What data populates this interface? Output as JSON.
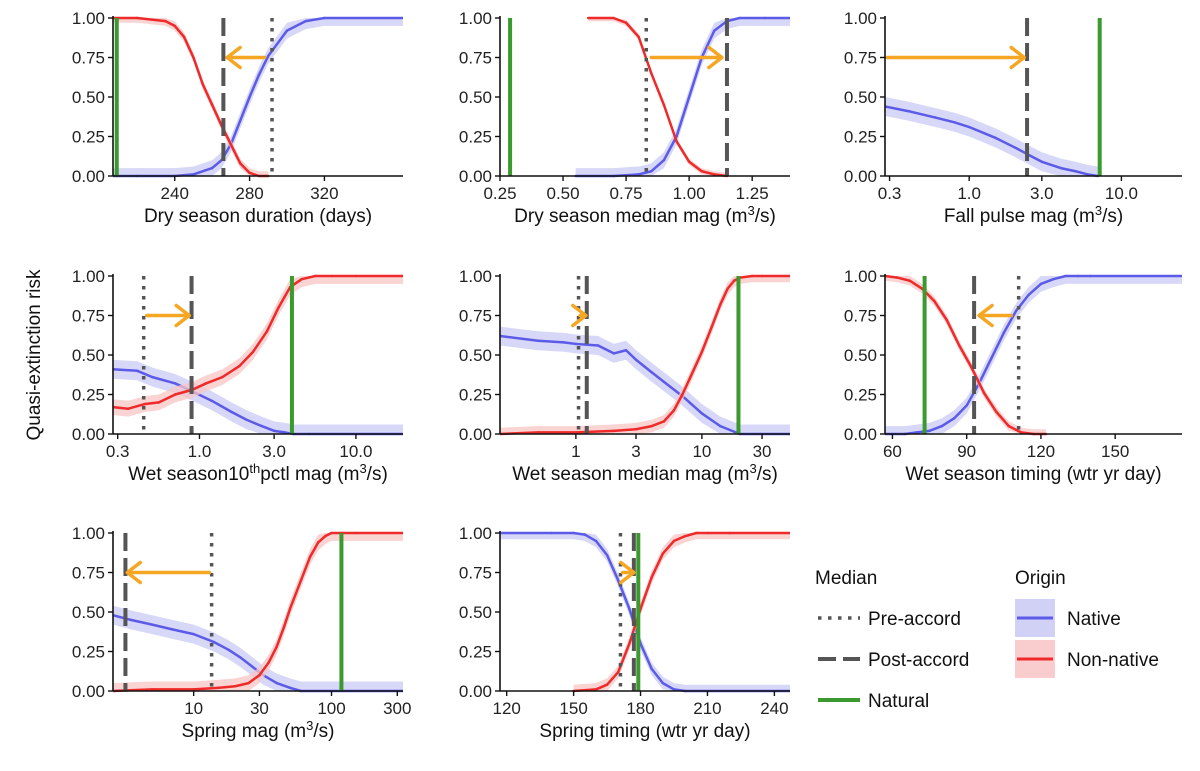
{
  "y_axis_label": "Quasi-extinction risk",
  "colors": {
    "native": "#5b5be8",
    "non_native": "#ee2a2a",
    "natural": "#3a9a2e",
    "accord": "#555555",
    "arrow": "#f5a623",
    "native_band": "#c9c9f5",
    "non_native_band": "#f8c4c4"
  },
  "legend": {
    "median_title": "Median",
    "median_items": [
      "Pre-accord",
      "Post-accord",
      "Natural"
    ],
    "origin_title": "Origin",
    "origin_items": [
      "Native",
      "Non-native"
    ]
  },
  "chart_data": [
    {
      "type": "line",
      "title": "",
      "xlabel": "Dry season duration (days)",
      "xlabel_parts": null,
      "x_scale": "linear",
      "xlim": [
        207,
        362
      ],
      "ylim": [
        0,
        1
      ],
      "xticks": [
        240,
        280,
        320
      ],
      "xtick_labels": [
        "240",
        "280",
        "320"
      ],
      "yticks": [
        0,
        0.25,
        0.5,
        0.75,
        1.0
      ],
      "ytick_labels": [
        "0.00",
        "0.25",
        "0.50",
        "0.75",
        "1.00"
      ],
      "series": [
        {
          "name": "Native",
          "x": [
            207,
            220,
            240,
            250,
            260,
            265,
            270,
            275,
            280,
            285,
            290,
            300,
            310,
            320,
            362
          ],
          "y": [
            0,
            0,
            0.0,
            0.01,
            0.05,
            0.1,
            0.2,
            0.35,
            0.5,
            0.64,
            0.76,
            0.92,
            0.98,
            1,
            1
          ],
          "band": 0.05
        },
        {
          "name": "Non-native",
          "x": [
            207,
            220,
            235,
            240,
            245,
            250,
            255,
            260,
            265,
            270,
            275,
            280,
            285,
            290
          ],
          "y": [
            1,
            1,
            0.98,
            0.95,
            0.88,
            0.75,
            0.58,
            0.45,
            0.32,
            0.2,
            0.08,
            0.02,
            0.0,
            0
          ],
          "band": 0.03
        }
      ],
      "medians": {
        "pre_accord": 292,
        "post_accord": 266,
        "natural": 209
      },
      "arrow": {
        "from": 288,
        "to": 268,
        "y": 0.75
      }
    },
    {
      "type": "line",
      "title": "",
      "xlabel": "Dry season median mag (m³/s)",
      "xlabel_parts": [
        "Dry season median mag (m",
        "3",
        "/s)"
      ],
      "x_scale": "linear",
      "xlim": [
        0.25,
        1.4
      ],
      "ylim": [
        0,
        1
      ],
      "xticks": [
        0.25,
        0.5,
        0.75,
        1.0,
        1.25
      ],
      "xtick_labels": [
        "0.25",
        "0.50",
        "0.75",
        "1.00",
        "1.25"
      ],
      "yticks": [
        0,
        0.25,
        0.5,
        0.75,
        1.0
      ],
      "ytick_labels": [
        "0.00",
        "0.25",
        "0.50",
        "0.75",
        "1.00"
      ],
      "series": [
        {
          "name": "Native",
          "x": [
            0.55,
            0.7,
            0.8,
            0.85,
            0.9,
            0.95,
            1.0,
            1.05,
            1.1,
            1.15,
            1.2,
            1.3,
            1.4
          ],
          "y": [
            0,
            0,
            0.01,
            0.03,
            0.1,
            0.25,
            0.5,
            0.75,
            0.92,
            0.98,
            1,
            1,
            1
          ],
          "band": 0.05
        },
        {
          "name": "Non-native",
          "x": [
            0.6,
            0.7,
            0.75,
            0.8,
            0.85,
            0.9,
            0.95,
            1.0,
            1.05,
            1.1,
            1.15
          ],
          "y": [
            1,
            1,
            0.97,
            0.88,
            0.65,
            0.45,
            0.22,
            0.09,
            0.03,
            0.01,
            0
          ],
          "band": 0.02
        }
      ],
      "medians": {
        "pre_accord": 0.83,
        "post_accord": 1.15,
        "natural": 0.29
      },
      "arrow": {
        "from": 0.85,
        "to": 1.13,
        "y": 0.75
      }
    },
    {
      "type": "line",
      "title": "",
      "xlabel": "Fall pulse mag (m³/s)",
      "xlabel_parts": [
        "Fall pulse mag (m",
        "3",
        "/s)"
      ],
      "x_scale": "log",
      "xlim": [
        0.28,
        25
      ],
      "ylim": [
        0,
        1
      ],
      "xticks": [
        0.3,
        1.0,
        3.0,
        10.0
      ],
      "xtick_labels": [
        "0.3",
        "1.0",
        "3.0",
        "10.0"
      ],
      "yticks": [
        0,
        0.25,
        0.5,
        0.75,
        1.0
      ],
      "ytick_labels": [
        "0.00",
        "0.25",
        "0.50",
        "0.75",
        "1.00"
      ],
      "series": [
        {
          "name": "Native",
          "x": [
            0.28,
            0.4,
            0.6,
            0.8,
            1.0,
            1.5,
            2.0,
            2.5,
            3.0,
            4.0,
            5.0,
            6.0,
            7.0
          ],
          "y": [
            0.44,
            0.41,
            0.37,
            0.34,
            0.31,
            0.24,
            0.18,
            0.13,
            0.09,
            0.05,
            0.03,
            0.01,
            0
          ],
          "band": 0.06
        }
      ],
      "medians": {
        "pre_accord": null,
        "post_accord": 2.4,
        "natural": 7.2
      },
      "arrow": {
        "from": 0.29,
        "to": 2.3,
        "y": 0.75
      }
    },
    {
      "type": "line",
      "title": "",
      "xlabel": "Wet season10thpctl mag (m³/s)",
      "xlabel_parts": [
        "Wet season10",
        "th",
        "pctl mag (m",
        "3",
        "/s)"
      ],
      "x_scale": "log",
      "xlim": [
        0.28,
        20
      ],
      "ylim": [
        0,
        1
      ],
      "xticks": [
        0.3,
        1.0,
        3.0,
        10.0
      ],
      "xtick_labels": [
        "0.3",
        "1.0",
        "3.0",
        "10.0"
      ],
      "yticks": [
        0,
        0.25,
        0.5,
        0.75,
        1.0
      ],
      "ytick_labels": [
        "0.00",
        "0.25",
        "0.50",
        "0.75",
        "1.00"
      ],
      "series": [
        {
          "name": "Native",
          "x": [
            0.28,
            0.4,
            0.5,
            0.7,
            0.9,
            1.2,
            1.6,
            2.0,
            2.5,
            3.0,
            3.5,
            4.0,
            5,
            20
          ],
          "y": [
            0.41,
            0.4,
            0.36,
            0.32,
            0.27,
            0.21,
            0.14,
            0.09,
            0.05,
            0.02,
            0.01,
            0,
            0,
            0
          ],
          "band": 0.06
        },
        {
          "name": "Non-native",
          "x": [
            0.28,
            0.35,
            0.45,
            0.55,
            0.7,
            0.9,
            1.1,
            1.4,
            1.8,
            2.2,
            2.7,
            3.2,
            3.8,
            4.5,
            5.5,
            7,
            10,
            20
          ],
          "y": [
            0.17,
            0.16,
            0.19,
            0.2,
            0.25,
            0.28,
            0.32,
            0.36,
            0.43,
            0.52,
            0.65,
            0.8,
            0.93,
            0.98,
            1,
            1,
            1,
            1
          ],
          "band": 0.05
        }
      ],
      "medians": {
        "pre_accord": 0.44,
        "post_accord": 0.89,
        "natural": 3.9
      },
      "arrow": {
        "from": 0.46,
        "to": 0.86,
        "y": 0.75
      }
    },
    {
      "type": "line",
      "title": "",
      "xlabel": "Wet season median mag (m³/s)",
      "xlabel_parts": [
        "Wet season median mag (m",
        "3",
        "/s)"
      ],
      "x_scale": "log",
      "xlim": [
        0.25,
        50
      ],
      "ylim": [
        0,
        1
      ],
      "xticks": [
        1,
        3,
        10,
        30
      ],
      "xtick_labels": [
        "1",
        "3",
        "10",
        "30"
      ],
      "yticks": [
        0,
        0.25,
        0.5,
        0.75,
        1.0
      ],
      "ytick_labels": [
        "0.00",
        "0.25",
        "0.50",
        "0.75",
        "1.00"
      ],
      "series": [
        {
          "name": "Native",
          "x": [
            0.25,
            0.5,
            0.8,
            1.0,
            1.5,
            2.0,
            2.5,
            3,
            4,
            5,
            7,
            10,
            14,
            20,
            50
          ],
          "y": [
            0.62,
            0.59,
            0.58,
            0.57,
            0.56,
            0.51,
            0.53,
            0.47,
            0.39,
            0.33,
            0.24,
            0.13,
            0.05,
            0,
            0
          ],
          "band": 0.06
        },
        {
          "name": "Non-native",
          "x": [
            0.25,
            0.5,
            1,
            2,
            3,
            4,
            5,
            6,
            7,
            8,
            10,
            12,
            14,
            16,
            18,
            20,
            25,
            30,
            50
          ],
          "y": [
            0,
            0.01,
            0.01,
            0.02,
            0.03,
            0.05,
            0.08,
            0.15,
            0.25,
            0.35,
            0.52,
            0.68,
            0.82,
            0.92,
            0.97,
            0.99,
            1,
            1,
            1
          ],
          "band": 0.04
        }
      ],
      "medians": {
        "pre_accord": 1.05,
        "post_accord": 1.22,
        "natural": 19.5
      },
      "arrow": {
        "from": 1.08,
        "to": 1.2,
        "y": 0.75
      }
    },
    {
      "type": "line",
      "title": "",
      "xlabel": "Wet season timing (wtr yr day)",
      "xlabel_parts": null,
      "x_scale": "linear",
      "xlim": [
        57,
        177
      ],
      "ylim": [
        0,
        1
      ],
      "xticks": [
        60,
        90,
        120,
        150
      ],
      "xtick_labels": [
        "60",
        "90",
        "120",
        "150"
      ],
      "yticks": [
        0,
        0.25,
        0.5,
        0.75,
        1.0
      ],
      "ytick_labels": [
        "0.00",
        "0.25",
        "0.50",
        "0.75",
        "1.00"
      ],
      "series": [
        {
          "name": "Native",
          "x": [
            57,
            65,
            70,
            75,
            80,
            85,
            90,
            95,
            100,
            105,
            110,
            115,
            120,
            125,
            130,
            135,
            140,
            177
          ],
          "y": [
            0,
            0,
            0.01,
            0.02,
            0.05,
            0.1,
            0.18,
            0.32,
            0.48,
            0.64,
            0.78,
            0.88,
            0.95,
            0.98,
            1,
            1,
            1,
            1
          ],
          "band": 0.05
        },
        {
          "name": "Non-native",
          "x": [
            57,
            62,
            67,
            72,
            77,
            82,
            87,
            92,
            97,
            102,
            107,
            112,
            117,
            122
          ],
          "y": [
            1,
            0.99,
            0.97,
            0.92,
            0.84,
            0.72,
            0.56,
            0.42,
            0.26,
            0.14,
            0.05,
            0.01,
            0,
            0
          ],
          "band": 0.03
        }
      ],
      "medians": {
        "pre_accord": 111,
        "post_accord": 93,
        "natural": 73
      },
      "arrow": {
        "from": 108,
        "to": 95,
        "y": 0.75
      }
    },
    {
      "type": "line",
      "title": "",
      "xlabel": "Spring mag (m³/s)",
      "xlabel_parts": [
        "Spring mag (m",
        "3",
        "/s)"
      ],
      "x_scale": "log",
      "xlim": [
        2.6,
        330
      ],
      "ylim": [
        0,
        1
      ],
      "xticks": [
        10,
        30,
        100,
        300
      ],
      "xtick_labels": [
        "10",
        "30",
        "100",
        "300"
      ],
      "yticks": [
        0,
        0.25,
        0.5,
        0.75,
        1.0
      ],
      "ytick_labels": [
        "0.00",
        "0.25",
        "0.50",
        "0.75",
        "1.00"
      ],
      "series": [
        {
          "name": "Native",
          "x": [
            2.6,
            3.5,
            5,
            7,
            10,
            14,
            18,
            22,
            27,
            32,
            40,
            50,
            60,
            330
          ],
          "y": [
            0.48,
            0.45,
            0.42,
            0.39,
            0.36,
            0.31,
            0.26,
            0.21,
            0.15,
            0.1,
            0.05,
            0.02,
            0,
            0
          ],
          "band": 0.06
        },
        {
          "name": "Non-native",
          "x": [
            2.6,
            5,
            10,
            15,
            20,
            25,
            30,
            35,
            40,
            45,
            50,
            60,
            70,
            80,
            90,
            100,
            120,
            150,
            330
          ],
          "y": [
            0,
            0.01,
            0.01,
            0.02,
            0.03,
            0.05,
            0.1,
            0.18,
            0.28,
            0.4,
            0.52,
            0.7,
            0.85,
            0.94,
            0.98,
            1,
            1,
            1,
            1
          ],
          "band": 0.05
        }
      ],
      "medians": {
        "pre_accord": 13.5,
        "post_accord": 3.2,
        "natural": 118
      },
      "arrow": {
        "from": 13,
        "to": 3.3,
        "y": 0.75
      }
    },
    {
      "type": "line",
      "title": "",
      "xlabel": "Spring timing (wtr yr day)",
      "xlabel_parts": null,
      "x_scale": "linear",
      "xlim": [
        117,
        247
      ],
      "ylim": [
        0,
        1
      ],
      "xticks": [
        120,
        150,
        180,
        210,
        240
      ],
      "xtick_labels": [
        "120",
        "150",
        "180",
        "210",
        "240"
      ],
      "yticks": [
        0,
        0.25,
        0.5,
        0.75,
        1.0
      ],
      "ytick_labels": [
        "0.00",
        "0.25",
        "0.50",
        "0.75",
        "1.00"
      ],
      "series": [
        {
          "name": "Native",
          "x": [
            117,
            140,
            150,
            155,
            160,
            165,
            170,
            175,
            180,
            185,
            190,
            195,
            200,
            247
          ],
          "y": [
            1,
            1,
            1,
            0.99,
            0.95,
            0.86,
            0.7,
            0.52,
            0.3,
            0.14,
            0.05,
            0.01,
            0,
            0
          ],
          "band": 0.04
        },
        {
          "name": "Non-native",
          "x": [
            150,
            160,
            165,
            170,
            175,
            180,
            185,
            190,
            195,
            200,
            205,
            210,
            220,
            247
          ],
          "y": [
            0,
            0.01,
            0.04,
            0.12,
            0.3,
            0.52,
            0.72,
            0.87,
            0.95,
            0.98,
            1,
            1,
            1,
            1
          ],
          "band": 0.04
        }
      ],
      "medians": {
        "pre_accord": 171,
        "post_accord": 177,
        "natural": 179
      },
      "arrow": {
        "from": 172,
        "to": 177,
        "y": 0.75
      }
    }
  ]
}
